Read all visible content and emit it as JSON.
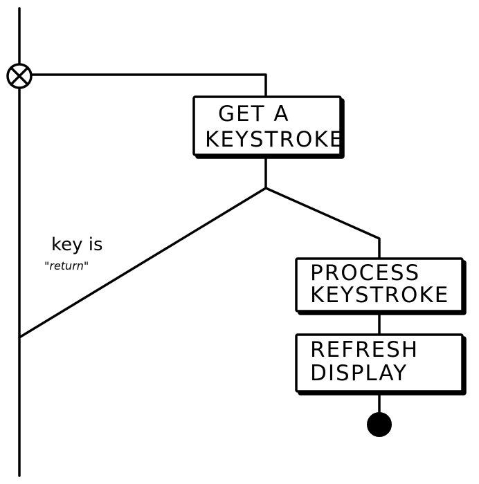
{
  "boxes": [
    {
      "line1": "GET  A",
      "line2": "KEYSTROKE"
    },
    {
      "line1": "PROCESS",
      "line2": "KEYSTROKE"
    },
    {
      "line1": "REFRESH",
      "line2": "DISPLAY"
    }
  ],
  "guard": {
    "line1": "key is",
    "line2": "\"return\""
  }
}
